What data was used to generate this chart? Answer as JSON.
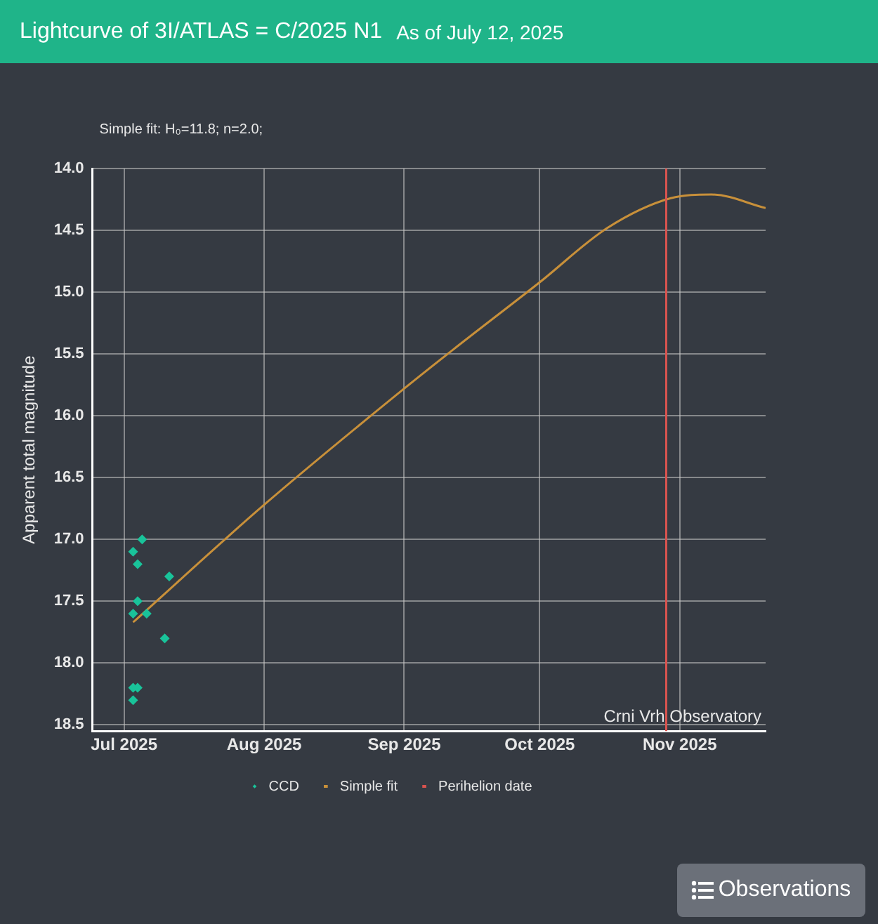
{
  "chart_data": {
    "type": "scatter",
    "title": "Lightcurve of 3I/ATLAS = C/2025 N1",
    "subtitle": "As of July 12, 2025",
    "ylabel": "Apparent total magnitude",
    "annotations": [
      "Simple fit: H₀=11.8; n=2.0;",
      "Crni Vrh Observatory",
      "Observations"
    ],
    "xlim": [
      "2025-06-24",
      "2025-11-20"
    ],
    "xticks": [
      {
        "value": "2025-07-01",
        "label": "Jul 2025"
      },
      {
        "value": "2025-08-01",
        "label": "Aug 2025"
      },
      {
        "value": "2025-09-01",
        "label": "Sep 2025"
      },
      {
        "value": "2025-10-01",
        "label": "Oct 2025"
      },
      {
        "value": "2025-11-01",
        "label": "Nov 2025"
      }
    ],
    "ylim": [
      18.55,
      14.0
    ],
    "yticks": [
      {
        "value": 14,
        "label": "14.0"
      },
      14.5,
      {
        "value": 15,
        "label": "15.0"
      },
      15.5,
      {
        "value": 16,
        "label": "16.0"
      },
      16.5,
      {
        "value": 17,
        "label": "17.0"
      },
      17.5,
      {
        "value": 18,
        "label": "18.0"
      },
      18.5
    ],
    "grid": true,
    "legend": "bottom",
    "marker": "diamond",
    "series": [
      {
        "name": "CCD",
        "color": "#19c39a",
        "x": [
          "2025-07-03",
          "2025-07-05",
          "2025-07-04",
          "2025-07-11",
          "2025-07-04",
          "2025-07-03",
          "2025-07-06",
          "2025-07-10",
          "2025-07-03",
          "2025-07-04",
          "2025-07-03"
        ],
        "values": [
          17.1,
          17.0,
          17.2,
          17.3,
          17.5,
          17.6,
          17.6,
          17.8,
          18.2,
          18.2,
          18.3
        ]
      },
      {
        "name": "Simple fit",
        "type": "line",
        "color": "#c8903a",
        "marker": "none",
        "x": [
          "2025-07-03",
          "2025-08-01",
          "2025-09-01",
          "2025-09-12",
          "2025-10-01",
          "2025-10-16",
          "2025-10-30",
          "2025-11-08",
          "2025-11-20"
        ],
        "values": [
          17.67,
          16.72,
          15.78,
          15.46,
          14.92,
          14.48,
          14.24,
          14.21,
          14.32
        ]
      }
    ],
    "ref_lines": [
      {
        "axis": "x",
        "value": "2025-10-29",
        "label": "Perihelion date",
        "color": "#d9534f"
      }
    ]
  }
}
